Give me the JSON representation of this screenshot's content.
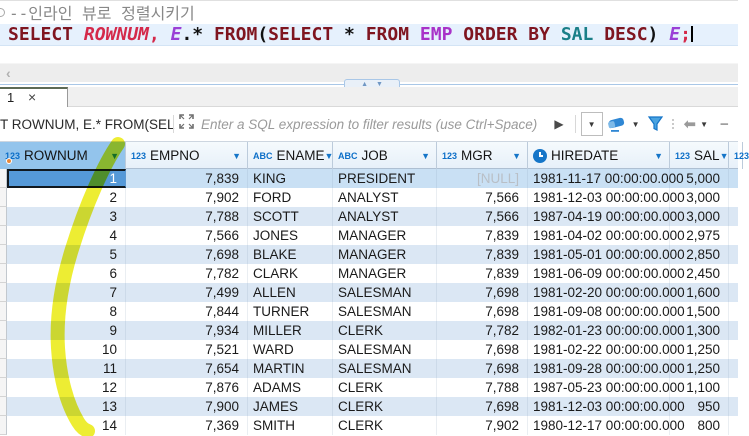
{
  "editor": {
    "comment": "--인라인 뷰로 정렬시키기",
    "sql_tokens": [
      {
        "text": "SELECT",
        "style": "kw"
      },
      {
        "text": " "
      },
      {
        "text": "ROWNUM",
        "style": "pseudo"
      },
      {
        "text": ",",
        "style": "comma"
      },
      {
        "text": " "
      },
      {
        "text": "E",
        "style": "alias"
      },
      {
        "text": ".*"
      },
      {
        "text": " "
      },
      {
        "text": "FROM",
        "style": "kw"
      },
      {
        "text": "("
      },
      {
        "text": "SELECT",
        "style": "kw"
      },
      {
        "text": " * "
      },
      {
        "text": "FROM",
        "style": "kw"
      },
      {
        "text": " "
      },
      {
        "text": "EMP",
        "style": "table"
      },
      {
        "text": " "
      },
      {
        "text": "ORDER BY",
        "style": "kw"
      },
      {
        "text": " "
      },
      {
        "text": "SAL",
        "style": "col"
      },
      {
        "text": " "
      },
      {
        "text": "DESC",
        "style": "kw"
      },
      {
        "text": ")"
      },
      {
        "text": " "
      },
      {
        "text": "E",
        "style": "alias"
      },
      {
        "text": ";",
        "style": "comma"
      }
    ]
  },
  "hscroll": {
    "left_arrow_glyph": "‹"
  },
  "splitter": {
    "up_glyph": "▲",
    "down_glyph": "▼"
  },
  "tab": {
    "label": "1",
    "close_glyph": "×"
  },
  "filter_bar": {
    "query_label": "T ROWNUM, E.* FROM(SEL",
    "placeholder": "Enter a SQL expression to filter results (use Ctrl+Space)",
    "apply_glyph": "▶",
    "dropdown_glyph": "▼",
    "back_glyph": "⬅",
    "partial_glyph": "−"
  },
  "grid": {
    "null_text": "[NULL]",
    "columns": [
      {
        "icon": "123",
        "label": "ROWNUM",
        "align": "right",
        "width": 126,
        "arrow": "▼",
        "selected": true,
        "keydot": true
      },
      {
        "icon": "123",
        "label": "EMPNO",
        "align": "right",
        "width": 122,
        "arrow": "▼"
      },
      {
        "icon": "ABC",
        "label": "ENAME",
        "align": "left",
        "width": 85,
        "arrow": "▼"
      },
      {
        "icon": "ABC",
        "label": "JOB",
        "align": "left",
        "width": 104,
        "arrow": "▼"
      },
      {
        "icon": "123",
        "label": "MGR",
        "align": "right",
        "width": 91,
        "arrow": "▼"
      },
      {
        "icon": "clock",
        "label": "HIREDATE",
        "align": "left",
        "width": 142,
        "arrow": "▼"
      },
      {
        "icon": "123",
        "label": "SAL",
        "align": "right",
        "width": 59,
        "arrow": "▼"
      },
      {
        "icon": "123",
        "label": "",
        "align": "right",
        "width": 14,
        "partial": true
      }
    ],
    "rows": [
      [
        "1",
        "7,839",
        "KING",
        "PRESIDENT",
        "[NULL]",
        "1981-11-17 00:00:00.000",
        "5,000"
      ],
      [
        "2",
        "7,902",
        "FORD",
        "ANALYST",
        "7,566",
        "1981-12-03 00:00:00.000",
        "3,000"
      ],
      [
        "3",
        "7,788",
        "SCOTT",
        "ANALYST",
        "7,566",
        "1987-04-19 00:00:00.000",
        "3,000"
      ],
      [
        "4",
        "7,566",
        "JONES",
        "MANAGER",
        "7,839",
        "1981-04-02 00:00:00.000",
        "2,975"
      ],
      [
        "5",
        "7,698",
        "BLAKE",
        "MANAGER",
        "7,839",
        "1981-05-01 00:00:00.000",
        "2,850"
      ],
      [
        "6",
        "7,782",
        "CLARK",
        "MANAGER",
        "7,839",
        "1981-06-09 00:00:00.000",
        "2,450"
      ],
      [
        "7",
        "7,499",
        "ALLEN",
        "SALESMAN",
        "7,698",
        "1981-02-20 00:00:00.000",
        "1,600"
      ],
      [
        "8",
        "7,844",
        "TURNER",
        "SALESMAN",
        "7,698",
        "1981-09-08 00:00:00.000",
        "1,500"
      ],
      [
        "9",
        "7,934",
        "MILLER",
        "CLERK",
        "7,782",
        "1982-01-23 00:00:00.000",
        "1,300"
      ],
      [
        "10",
        "7,521",
        "WARD",
        "SALESMAN",
        "7,698",
        "1981-02-22 00:00:00.000",
        "1,250"
      ],
      [
        "11",
        "7,654",
        "MARTIN",
        "SALESMAN",
        "7,698",
        "1981-09-28 00:00:00.000",
        "1,250"
      ],
      [
        "12",
        "7,876",
        "ADAMS",
        "CLERK",
        "7,788",
        "1987-05-23 00:00:00.000",
        "1,100"
      ],
      [
        "13",
        "7,900",
        "JAMES",
        "CLERK",
        "7,698",
        "1981-12-03 00:00:00.000",
        "950"
      ],
      [
        "14",
        "7,369",
        "SMITH",
        "CLERK",
        "7,902",
        "1980-12-17 00:00:00.000",
        "800"
      ]
    ]
  },
  "colors": {
    "keyword": "#7f1520",
    "selected_header": "#93c4ec",
    "selected_cell": "#5599d8",
    "row_stripe": "#dbe7f4",
    "icon_blue": "#1575c8",
    "highlighter_yellow": "#e9e900"
  }
}
